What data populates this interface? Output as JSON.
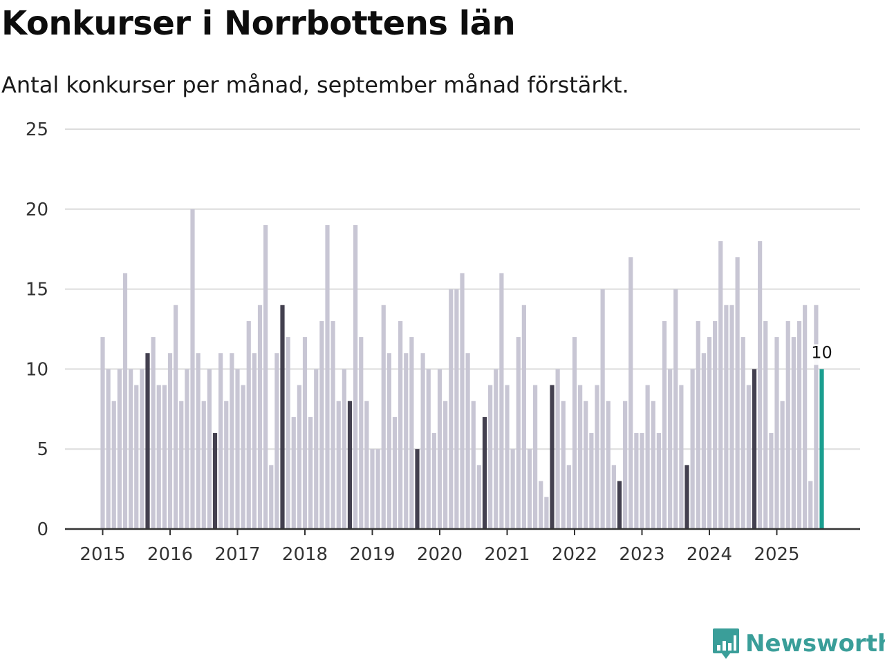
{
  "colors": {
    "bar": "#c8c6d4",
    "highlight": "#43404f",
    "current": "#1a9e8f",
    "grid": "#dcdcdc",
    "axis": "#333333",
    "text": "#333333",
    "brand": "#3a9e99"
  },
  "brand": {
    "name": "Newsworthy",
    "icon": "newsworthy-chart-icon"
  },
  "chart_data": {
    "type": "bar",
    "title": "Konkurser i Norrbottens län",
    "subtitle": "Antal konkurser per månad, september månad förstärkt.",
    "xlabel": "",
    "ylabel": "",
    "ylim": [
      0,
      25
    ],
    "yticks": [
      0,
      5,
      10,
      15,
      20,
      25
    ],
    "grid": true,
    "start": {
      "year": 2015,
      "month": 1
    },
    "xticks": [
      "2015",
      "2016",
      "2017",
      "2018",
      "2019",
      "2020",
      "2021",
      "2022",
      "2023",
      "2024",
      "2025"
    ],
    "highlight_month": 9,
    "values": [
      12,
      10,
      8,
      10,
      16,
      10,
      9,
      10,
      11,
      12,
      9,
      9,
      11,
      14,
      8,
      10,
      20,
      11,
      8,
      10,
      6,
      11,
      8,
      11,
      10,
      9,
      13,
      11,
      14,
      19,
      4,
      11,
      14,
      12,
      7,
      9,
      12,
      7,
      10,
      13,
      19,
      13,
      8,
      10,
      8,
      19,
      12,
      8,
      5,
      5,
      14,
      11,
      7,
      13,
      11,
      12,
      5,
      11,
      10,
      6,
      10,
      8,
      15,
      15,
      16,
      11,
      8,
      4,
      7,
      9,
      10,
      16,
      9,
      5,
      12,
      14,
      5,
      9,
      3,
      2,
      9,
      10,
      8,
      4,
      12,
      9,
      8,
      6,
      9,
      15,
      8,
      4,
      3,
      8,
      17,
      6,
      6,
      9,
      8,
      6,
      13,
      10,
      15,
      9,
      4,
      10,
      13,
      11,
      12,
      13,
      18,
      14,
      14,
      17,
      12,
      9,
      10,
      18,
      13,
      6,
      12,
      8,
      13,
      12,
      13,
      14,
      3,
      14,
      10
    ],
    "annotation": {
      "label": "10",
      "target": "last"
    }
  }
}
